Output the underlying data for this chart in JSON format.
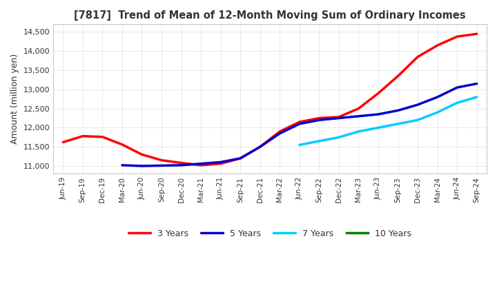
{
  "title": "[7817]  Trend of Mean of 12-Month Moving Sum of Ordinary Incomes",
  "ylabel": "Amount (million yen)",
  "ylim": [
    10800,
    14700
  ],
  "yticks": [
    11000,
    11500,
    12000,
    12500,
    13000,
    13500,
    14000,
    14500
  ],
  "background_color": "#ffffff",
  "plot_background": "#ffffff",
  "line_colors": {
    "3y": "#ff0000",
    "5y": "#0000cc",
    "7y": "#00ccff",
    "10y": "#008000"
  },
  "legend_labels": [
    "3 Years",
    "5 Years",
    "7 Years",
    "10 Years"
  ],
  "x_labels": [
    "Jun-19",
    "Sep-19",
    "Dec-19",
    "Mar-20",
    "Jun-20",
    "Sep-20",
    "Dec-20",
    "Mar-21",
    "Jun-21",
    "Sep-21",
    "Dec-21",
    "Mar-22",
    "Jun-22",
    "Sep-22",
    "Dec-22",
    "Mar-23",
    "Jun-23",
    "Sep-23",
    "Dec-23",
    "Mar-24",
    "Jun-24",
    "Sep-24"
  ],
  "series_3y": [
    11620,
    11780,
    11760,
    11560,
    11300,
    11150,
    11080,
    11020,
    11060,
    11200,
    11500,
    11900,
    12150,
    12250,
    12280,
    12500,
    12900,
    13350,
    13850,
    14150,
    14380,
    14450
  ],
  "series_5y": [
    null,
    null,
    null,
    11020,
    11000,
    11010,
    11020,
    11060,
    11100,
    11200,
    11500,
    11850,
    12100,
    12200,
    12250,
    12300,
    12350,
    12450,
    12600,
    12800,
    13050,
    13150
  ],
  "series_7y": [
    null,
    null,
    null,
    null,
    null,
    null,
    null,
    null,
    null,
    null,
    null,
    null,
    null,
    null,
    null,
    null,
    null,
    null,
    null,
    null,
    null,
    null
  ],
  "series_7y_start": [
    null,
    null,
    null,
    null,
    null,
    null,
    null,
    null,
    null,
    null,
    null,
    null,
    11550,
    11650,
    11750,
    11900,
    12000,
    12100,
    12200,
    12400,
    12650,
    12800
  ],
  "series_10y": [
    null,
    null,
    null,
    null,
    null,
    null,
    null,
    null,
    null,
    null,
    null,
    null,
    null,
    null,
    null,
    null,
    null,
    null,
    null,
    null,
    null,
    null
  ]
}
